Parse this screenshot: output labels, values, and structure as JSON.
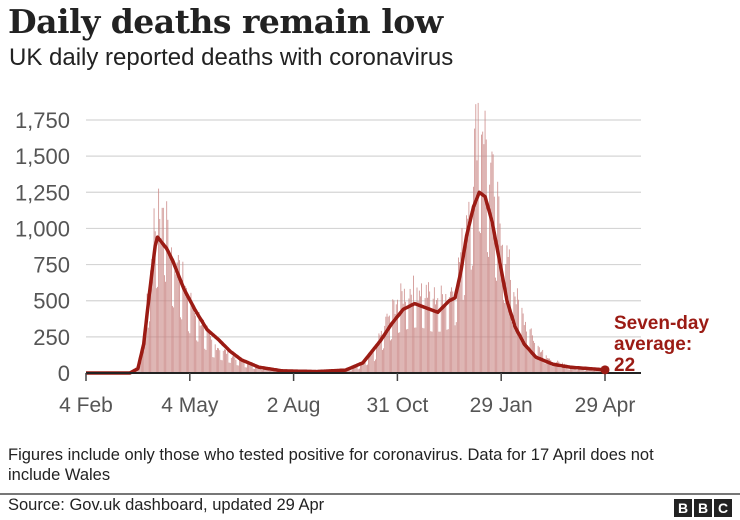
{
  "chart_data": {
    "type": "bar+line",
    "title": "Daily deaths remain low",
    "subtitle": "UK daily reported deaths with coronavirus",
    "xlabel": "",
    "ylabel": "",
    "ylim": [
      0,
      1750
    ],
    "yticks": [
      0,
      250,
      500,
      750,
      1000,
      1250,
      1500,
      1750
    ],
    "ytick_labels": [
      "0",
      "250",
      "500",
      "750",
      "1,000",
      "1,250",
      "1,500",
      "1,750"
    ],
    "x_range": [
      "2020-02-04",
      "2021-04-29"
    ],
    "xticks": [
      "2020-02-04",
      "2020-05-04",
      "2020-08-02",
      "2020-10-31",
      "2021-01-29",
      "2021-04-29"
    ],
    "xtick_labels": [
      "4 Feb",
      "4 May",
      "2 Aug",
      "31 Oct",
      "29 Jan",
      "29 Apr"
    ],
    "grid": true,
    "series": [
      {
        "name": "Daily reported deaths",
        "kind": "bar",
        "color": "#c98583",
        "note": "values by day offset from 4 Feb 2020 (approximate)",
        "key_points": [
          [
            0,
            0
          ],
          [
            34,
            0
          ],
          [
            40,
            5
          ],
          [
            45,
            60
          ],
          [
            50,
            250
          ],
          [
            55,
            650
          ],
          [
            60,
            1050
          ],
          [
            63,
            1100
          ],
          [
            65,
            1000
          ],
          [
            68,
            1230
          ],
          [
            72,
            900
          ],
          [
            80,
            750
          ],
          [
            90,
            500
          ],
          [
            100,
            350
          ],
          [
            110,
            200
          ],
          [
            120,
            150
          ],
          [
            135,
            80
          ],
          [
            150,
            40
          ],
          [
            170,
            15
          ],
          [
            200,
            10
          ],
          [
            220,
            15
          ],
          [
            235,
            40
          ],
          [
            250,
            150
          ],
          [
            260,
            350
          ],
          [
            270,
            500
          ],
          [
            280,
            560
          ],
          [
            290,
            580
          ],
          [
            300,
            520
          ],
          [
            310,
            520
          ],
          [
            320,
            600
          ],
          [
            325,
            800
          ],
          [
            330,
            1100
          ],
          [
            335,
            1350
          ],
          [
            340,
            1800
          ],
          [
            345,
            1700
          ],
          [
            350,
            1400
          ],
          [
            355,
            1200
          ],
          [
            360,
            1000
          ],
          [
            370,
            600
          ],
          [
            380,
            350
          ],
          [
            390,
            200
          ],
          [
            400,
            100
          ],
          [
            420,
            40
          ],
          [
            440,
            25
          ],
          [
            450,
            20
          ]
        ]
      },
      {
        "name": "Seven-day average",
        "kind": "line",
        "color": "#9b1b14",
        "key_points": [
          [
            0,
            0
          ],
          [
            38,
            0
          ],
          [
            45,
            30
          ],
          [
            50,
            200
          ],
          [
            55,
            550
          ],
          [
            60,
            880
          ],
          [
            62,
            940
          ],
          [
            66,
            900
          ],
          [
            70,
            860
          ],
          [
            75,
            780
          ],
          [
            85,
            580
          ],
          [
            95,
            430
          ],
          [
            105,
            300
          ],
          [
            115,
            230
          ],
          [
            125,
            150
          ],
          [
            135,
            90
          ],
          [
            150,
            40
          ],
          [
            170,
            15
          ],
          [
            200,
            10
          ],
          [
            225,
            20
          ],
          [
            240,
            70
          ],
          [
            255,
            220
          ],
          [
            265,
            340
          ],
          [
            275,
            440
          ],
          [
            285,
            480
          ],
          [
            295,
            450
          ],
          [
            305,
            420
          ],
          [
            315,
            500
          ],
          [
            320,
            520
          ],
          [
            325,
            700
          ],
          [
            330,
            950
          ],
          [
            336,
            1150
          ],
          [
            341,
            1250
          ],
          [
            346,
            1220
          ],
          [
            352,
            1050
          ],
          [
            358,
            800
          ],
          [
            365,
            500
          ],
          [
            372,
            320
          ],
          [
            380,
            200
          ],
          [
            390,
            110
          ],
          [
            405,
            60
          ],
          [
            420,
            40
          ],
          [
            440,
            28
          ],
          [
            450,
            22
          ]
        ]
      }
    ],
    "annotation": {
      "lines": [
        "Seven-day",
        "average:",
        "22"
      ],
      "color": "#9b1b14",
      "value": 22
    }
  },
  "footer": {
    "note": "Figures include only those who tested positive for coronavirus. Data for 17 April does not include Wales",
    "source": "Source: Gov.uk dashboard, updated 29 Apr",
    "logo": [
      "B",
      "B",
      "C"
    ]
  }
}
